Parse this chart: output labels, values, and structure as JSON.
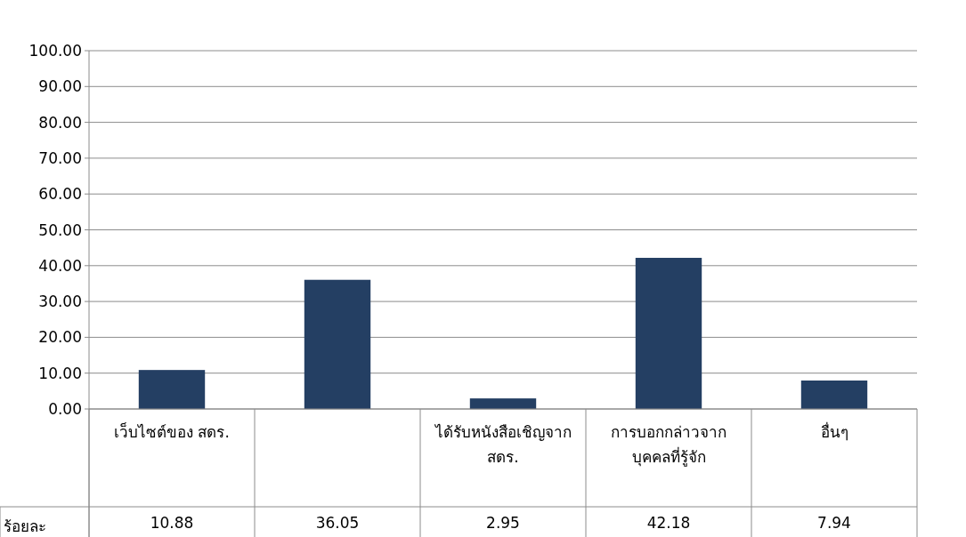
{
  "chart_data": {
    "type": "bar",
    "categories": [
      "เว็บไซต์ของ สดร.",
      null,
      "ได้รับหนังสือเชิญจาก สดร.",
      "การบอกกล่าวจากบุคคลที่รู้จัก",
      "อื่นๆ"
    ],
    "series": [
      {
        "name": "ร้อยละ",
        "color": "#243f63",
        "values": [
          10.88,
          36.05,
          2.95,
          42.18,
          7.94
        ]
      }
    ],
    "ylim": [
      0,
      100
    ],
    "yticks": [
      {
        "value": 0,
        "label": "0.00"
      },
      {
        "value": 10,
        "label": "10.00"
      },
      {
        "value": 20,
        "label": "20.00"
      },
      {
        "value": 30,
        "label": "30.00"
      },
      {
        "value": 40,
        "label": "40.00"
      },
      {
        "value": 50,
        "label": "50.00"
      },
      {
        "value": 60,
        "label": "60.00"
      },
      {
        "value": 70,
        "label": "70.00"
      },
      {
        "value": 80,
        "label": "80.00"
      },
      {
        "value": 90,
        "label": "90.00"
      },
      {
        "value": 100,
        "label": "100.00"
      }
    ],
    "grid": "y",
    "data_labels": true
  }
}
